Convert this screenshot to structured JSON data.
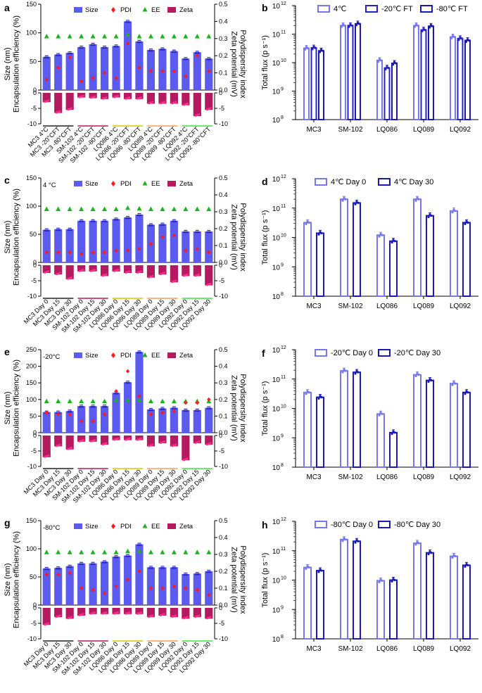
{
  "panels": {
    "a": {
      "letter": "a"
    },
    "b": {
      "letter": "b"
    },
    "c": {
      "letter": "c"
    },
    "d": {
      "letter": "d"
    },
    "e": {
      "letter": "e"
    },
    "f": {
      "letter": "f"
    },
    "g": {
      "letter": "g"
    },
    "h": {
      "letter": "h"
    }
  },
  "chart_data": [
    {
      "id": "a",
      "type": "bar",
      "title": "",
      "ylabel_left_lines": [
        "Size (nm)",
        "Encapsulation efficiency (%)"
      ],
      "ylabel_right_lines": [
        "Polydispersity index",
        "Zeta potential (mV)"
      ],
      "left_ticks": [
        0,
        50,
        100,
        150
      ],
      "left_ylim": [
        0,
        150
      ],
      "right_ticks": [
        0.0,
        0.1,
        0.2,
        0.3,
        0.4,
        0.5
      ],
      "right_ylim": [
        0,
        0.5
      ],
      "zeta_left_ticks": [
        0,
        -5,
        -10
      ],
      "zeta_right_ticks": [
        0,
        -5,
        -10
      ],
      "zeta_ylim": [
        -10,
        0
      ],
      "legend": [
        "Size",
        "PDI",
        "EE",
        "Zeta"
      ],
      "categories": [
        "MC3 4°C",
        "MC3 -20°CFT",
        "MC3 -80°CFT",
        "SM-102 4°C",
        "SM-102 -20°CFT",
        "SM-102 -80°CFT",
        "LQ086 4°C",
        "LQ086 -20°CFT",
        "LQ086 -80°CFT",
        "LQ089 4°C",
        "LQ089 -20°CFT",
        "LQ089 -80°CFT",
        "LQ092 4°C",
        "LQ092 -20°CFT",
        "LQ092 -80°CFT"
      ],
      "series": [
        {
          "name": "Size",
          "values": [
            58,
            62,
            65,
            75,
            80,
            75,
            77,
            120,
            85,
            70,
            72,
            68,
            55,
            66,
            55
          ]
        },
        {
          "name": "PDI",
          "values": [
            0.06,
            0.13,
            0.19,
            0.05,
            0.07,
            0.1,
            0.07,
            0.27,
            0.13,
            0.11,
            0.11,
            0.11,
            0.08,
            0.2,
            0.11
          ]
        },
        {
          "name": "EE",
          "values": [
            94,
            94,
            94,
            94,
            94,
            94,
            94,
            97,
            94,
            94,
            94,
            94,
            94,
            94,
            94
          ]
        },
        {
          "name": "Zeta",
          "values": [
            -3,
            -6.5,
            -5.5,
            -1.5,
            -1.7,
            -2,
            -1.5,
            -2,
            -2,
            -3.5,
            -3.5,
            -3.5,
            -4,
            -7.5,
            -5.5
          ]
        }
      ]
    },
    {
      "id": "b",
      "type": "bar",
      "ylabel": "Total flux (p s⁻¹)",
      "yscale": "log",
      "ylim_exp": [
        8,
        12
      ],
      "tick_exponents": [
        8,
        9,
        10,
        11,
        12
      ],
      "categories": [
        "MC3",
        "SM-102",
        "LQ086",
        "LQ089",
        "LQ092"
      ],
      "series": [
        {
          "name": "4℃",
          "values": [
            32000000000.0,
            200000000000.0,
            12000000000.0,
            200000000000.0,
            80000000000.0
          ]
        },
        {
          "name": "-20℃ FT",
          "values": [
            33000000000.0,
            200000000000.0,
            6500000000.0,
            140000000000.0,
            70000000000.0
          ]
        },
        {
          "name": "-80℃ FT",
          "values": [
            26000000000.0,
            230000000000.0,
            9500000000.0,
            190000000000.0,
            60000000000.0
          ]
        }
      ]
    },
    {
      "id": "c",
      "type": "bar",
      "annotation": "4 °C",
      "ylabel_left_lines": [
        "Size (nm)",
        "Encapsulation efficiency (%)"
      ],
      "ylabel_right_lines": [
        "Polydispersity index",
        "Zeta potential (mV)"
      ],
      "left_ticks": [
        0,
        50,
        100,
        150
      ],
      "left_ylim": [
        0,
        150
      ],
      "right_ticks": [
        0.0,
        0.1,
        0.2,
        0.3,
        0.4,
        0.5
      ],
      "right_ylim": [
        0,
        0.5
      ],
      "zeta_left_ticks": [
        0,
        -5,
        -10
      ],
      "zeta_right_ticks": [
        0,
        -5,
        -10
      ],
      "zeta_ylim": [
        -10,
        0
      ],
      "legend": [
        "Size",
        "PDI",
        "EE",
        "Zeta"
      ],
      "categories": [
        "MC3 Day 0",
        "MC3 Day 15",
        "MC3 Day 30",
        "SM-102 Day 0",
        "SM-102 Day 15",
        "SM-102 Day 30",
        "LQ086 Day 0",
        "LQ086 Day 15",
        "LQ086 Day 30",
        "LQ089 Day 0",
        "LQ089 Day 15",
        "LQ089 Day 30",
        "LQ092 Day 0",
        "LQ092 Day 15",
        "LQ092 Day 30"
      ],
      "series": [
        {
          "name": "Size",
          "values": [
            58,
            59,
            59,
            74,
            74,
            74,
            77,
            80,
            85,
            67,
            68,
            74,
            55,
            55,
            55
          ]
        },
        {
          "name": "PDI",
          "values": [
            0.06,
            0.06,
            0.06,
            0.05,
            0.06,
            0.06,
            0.07,
            0.07,
            0.08,
            0.11,
            0.15,
            0.16,
            0.07,
            0.08,
            0.06
          ]
        },
        {
          "name": "EE",
          "values": [
            95,
            95,
            95,
            95,
            95,
            95,
            95,
            97,
            96,
            95,
            95,
            95,
            95,
            95,
            95
          ]
        },
        {
          "name": "Zeta",
          "values": [
            -2.5,
            -3,
            -4.5,
            -2,
            -2,
            -3.5,
            -2,
            -2.5,
            -2.5,
            -4,
            -3,
            -5.5,
            -3.5,
            -3.5,
            -6.5
          ]
        }
      ]
    },
    {
      "id": "d",
      "type": "bar",
      "ylabel": "Total flux (p s⁻¹)",
      "yscale": "log",
      "ylim_exp": [
        8,
        12
      ],
      "tick_exponents": [
        8,
        9,
        10,
        11,
        12
      ],
      "categories": [
        "MC3",
        "SM-102",
        "LQ086",
        "LQ089",
        "LQ092"
      ],
      "series": [
        {
          "name": "4℃ Day 0",
          "values": [
            32000000000.0,
            200000000000.0,
            12000000000.0,
            200000000000.0,
            80000000000.0
          ]
        },
        {
          "name": "4℃ Day 30",
          "values": [
            14000000000.0,
            150000000000.0,
            7500000000.0,
            55000000000.0,
            32000000000.0
          ]
        }
      ]
    },
    {
      "id": "e",
      "type": "bar",
      "annotation": "-20°C",
      "ylabel_left_lines": [
        "Size (nm)",
        "Encapsulation efficiency (%)"
      ],
      "ylabel_right_lines": [
        "Polydispersity index",
        "Zeta potential (mV)"
      ],
      "left_ticks": [
        0,
        50,
        100,
        150,
        200,
        250
      ],
      "left_ylim": [
        0,
        250
      ],
      "right_ticks": [
        0.0,
        0.1,
        0.2,
        0.3,
        0.4,
        0.5
      ],
      "right_ylim": [
        0,
        0.5
      ],
      "zeta_left_ticks": [
        0,
        -5,
        -10
      ],
      "zeta_right_ticks": [
        0,
        -5,
        -10
      ],
      "zeta_ylim": [
        -10,
        0
      ],
      "legend": [
        "Size",
        "PDI",
        "EE",
        "Zeta"
      ],
      "categories": [
        "MC3 Day 0",
        "MC3 Day 15",
        "MC3 Day 30",
        "SM-102 Day 0",
        "SM-102 Day 15",
        "SM-102 Day 30",
        "LQ086 Day 0",
        "LQ086 Day 15",
        "LQ086 Day 30",
        "LQ089 Day 0",
        "LQ089 Day 15",
        "LQ089 Day 30",
        "LQ092 Day 0",
        "LQ092 Day 15",
        "LQ092 Day 30"
      ],
      "series": [
        {
          "name": "Size",
          "values": [
            62,
            62,
            65,
            80,
            80,
            80,
            120,
            152,
            243,
            70,
            73,
            75,
            68,
            68,
            75
          ]
        },
        {
          "name": "PDI",
          "values": [
            0.12,
            0.11,
            0.11,
            0.07,
            0.07,
            0.11,
            0.25,
            0.37,
            0.22,
            0.11,
            0.12,
            0.13,
            0.18,
            0.18,
            0.2
          ]
        },
        {
          "name": "EE",
          "values": [
            95,
            95,
            95,
            95,
            95,
            95,
            98,
            98,
            98,
            95,
            95,
            95,
            95,
            95,
            95
          ]
        },
        {
          "name": "Zeta",
          "values": [
            -7,
            -3.5,
            -4.5,
            -2,
            -2,
            -3,
            -1.5,
            -1.5,
            -1.5,
            -3.5,
            -2.5,
            -3.5,
            -8,
            -2.5,
            -3
          ]
        }
      ]
    },
    {
      "id": "f",
      "type": "bar",
      "ylabel": "Total flux (p s⁻¹)",
      "yscale": "log",
      "ylim_exp": [
        8,
        12
      ],
      "tick_exponents": [
        8,
        9,
        10,
        11,
        12
      ],
      "categories": [
        "MC3",
        "SM-102",
        "LQ086",
        "LQ089",
        "LQ092"
      ],
      "series": [
        {
          "name": "-20℃ Day 0",
          "values": [
            35000000000.0,
            190000000000.0,
            6500000000.0,
            140000000000.0,
            70000000000.0
          ]
        },
        {
          "name": "-20℃ Day 30",
          "values": [
            24000000000.0,
            170000000000.0,
            1500000000.0,
            90000000000.0,
            35000000000.0
          ]
        }
      ]
    },
    {
      "id": "g",
      "type": "bar",
      "annotation": "-80°C",
      "ylabel_left_lines": [
        "Size (nm)",
        "Encapsulation efficiency (%)"
      ],
      "ylabel_right_lines": [
        "Polydispersity index",
        "Zeta potential (mV)"
      ],
      "left_ticks": [
        0,
        50,
        100,
        150
      ],
      "left_ylim": [
        0,
        150
      ],
      "right_ticks": [
        0.0,
        0.1,
        0.2,
        0.3,
        0.4,
        0.5
      ],
      "right_ylim": [
        0,
        0.5
      ],
      "zeta_left_ticks": [
        0,
        -5,
        -10
      ],
      "zeta_right_ticks": [
        0,
        -5,
        -10
      ],
      "zeta_ylim": [
        -10,
        0
      ],
      "legend": [
        "Size",
        "PDI",
        "EE",
        "Zeta"
      ],
      "categories": [
        "MC3 Day 0",
        "MC3 Day 15",
        "MC3 Day 30",
        "SM-102 Day 0",
        "SM-102 Day 15",
        "SM-102 Day 30",
        "LQ086 Day 0",
        "LQ086 Day 15",
        "LQ086 Day 30",
        "LQ089 Day 0",
        "LQ089 Day 15",
        "LQ089 Day 30",
        "LQ092 Day 0",
        "LQ092 Day 15",
        "LQ092 Day 30"
      ],
      "series": [
        {
          "name": "Size",
          "values": [
            65,
            66,
            69,
            74,
            74,
            77,
            86,
            88,
            108,
            67,
            67,
            67,
            55,
            56,
            60
          ]
        },
        {
          "name": "PDI",
          "values": [
            0.18,
            0.18,
            0.19,
            0.1,
            0.09,
            0.07,
            0.11,
            0.15,
            0.2,
            0.1,
            0.1,
            0.11,
            0.1,
            0.09,
            0.06
          ]
        },
        {
          "name": "EE",
          "values": [
            94,
            94,
            94,
            94,
            94,
            94,
            94,
            96,
            96,
            94,
            94,
            94,
            94,
            94,
            94
          ]
        },
        {
          "name": "Zeta",
          "values": [
            -5.5,
            -3,
            -3.5,
            -2.5,
            -2,
            -2,
            -2,
            -2,
            -2,
            -3,
            -2.5,
            -3,
            -3.5,
            -3,
            -3.5
          ]
        }
      ]
    },
    {
      "id": "h",
      "type": "bar",
      "ylabel": "Total flux (p s⁻¹)",
      "yscale": "log",
      "ylim_exp": [
        8,
        12
      ],
      "tick_exponents": [
        8,
        9,
        10,
        11,
        12
      ],
      "categories": [
        "MC3",
        "SM-102",
        "LQ086",
        "LQ089",
        "LQ092"
      ],
      "series": [
        {
          "name": "-80℃ Day 0",
          "values": [
            27000000000.0,
            240000000000.0,
            9500000000.0,
            180000000000.0,
            65000000000.0
          ]
        },
        {
          "name": "-80℃ Day 30",
          "values": [
            21000000000.0,
            210000000000.0,
            10000000000.0,
            85000000000.0,
            32000000000.0
          ]
        }
      ]
    }
  ]
}
